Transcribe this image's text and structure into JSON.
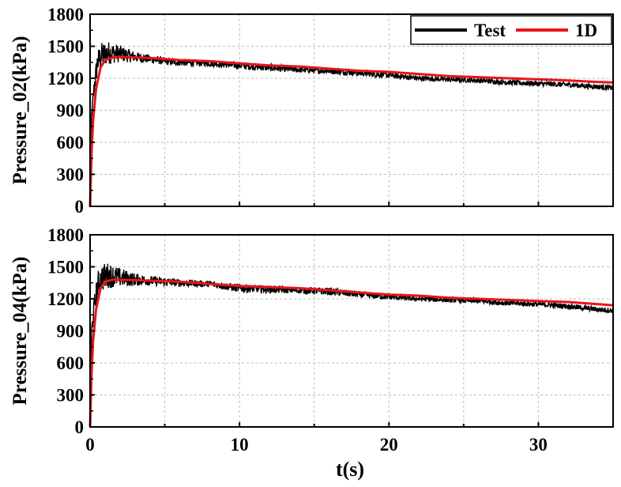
{
  "chart_data": {
    "type": "line",
    "shared_x": {
      "label": "t(s)",
      "xlim": [
        0,
        35
      ],
      "ticks": [
        0,
        10,
        20,
        30
      ],
      "minor_ticks": [
        5,
        15,
        25,
        35
      ]
    },
    "legend": {
      "position": "top-right",
      "entries": [
        {
          "name": "Test",
          "color": "#000000"
        },
        {
          "name": "1D",
          "color": "#e8141b"
        }
      ]
    },
    "panels": [
      {
        "ylabel": "Pressure_02(kPa)",
        "ylim": [
          0,
          1800
        ],
        "yticks": [
          0,
          300,
          600,
          900,
          1200,
          1500,
          1800
        ],
        "series": [
          {
            "name": "Test",
            "color": "#000000",
            "points": [
              [
                0,
                0
              ],
              [
                0.1,
                850
              ],
              [
                0.3,
                1150
              ],
              [
                0.5,
                1350
              ],
              [
                0.8,
                1420
              ],
              [
                1.2,
                1440
              ],
              [
                2,
                1430
              ],
              [
                3,
                1400
              ],
              [
                4,
                1380
              ],
              [
                5,
                1360
              ],
              [
                6,
                1350
              ],
              [
                8,
                1340
              ],
              [
                10,
                1320
              ],
              [
                12,
                1300
              ],
              [
                14,
                1280
              ],
              [
                16,
                1270
              ],
              [
                18,
                1250
              ],
              [
                20,
                1230
              ],
              [
                22,
                1200
              ],
              [
                24,
                1190
              ],
              [
                26,
                1180
              ],
              [
                28,
                1160
              ],
              [
                30,
                1150
              ],
              [
                32,
                1140
              ],
              [
                34,
                1120
              ],
              [
                35,
                1110
              ]
            ],
            "noise": [
              0,
              60,
              90,
              120,
              120,
              110,
              80,
              50,
              40,
              35,
              35,
              30,
              35,
              35,
              30,
              30,
              30,
              30,
              25,
              25,
              25,
              25,
              25,
              25,
              25,
              25
            ]
          },
          {
            "name": "1D",
            "color": "#e8141b",
            "points": [
              [
                0,
                0
              ],
              [
                0.1,
                500
              ],
              [
                0.2,
                800
              ],
              [
                0.4,
                1100
              ],
              [
                0.7,
                1300
              ],
              [
                1.0,
                1370
              ],
              [
                1.5,
                1395
              ],
              [
                2,
                1400
              ],
              [
                4,
                1390
              ],
              [
                6,
                1370
              ],
              [
                8,
                1360
              ],
              [
                10,
                1340
              ],
              [
                12,
                1320
              ],
              [
                14,
                1310
              ],
              [
                16,
                1290
              ],
              [
                18,
                1270
              ],
              [
                20,
                1260
              ],
              [
                22,
                1240
              ],
              [
                24,
                1220
              ],
              [
                26,
                1210
              ],
              [
                28,
                1200
              ],
              [
                30,
                1190
              ],
              [
                32,
                1180
              ],
              [
                34,
                1165
              ],
              [
                35,
                1160
              ]
            ]
          }
        ]
      },
      {
        "ylabel": "Pressure_04(kPa)",
        "ylim": [
          0,
          1800
        ],
        "yticks": [
          0,
          300,
          600,
          900,
          1200,
          1500,
          1800
        ],
        "series": [
          {
            "name": "Test",
            "color": "#000000",
            "points": [
              [
                0,
                0
              ],
              [
                0.1,
                900
              ],
              [
                0.3,
                1150
              ],
              [
                0.5,
                1320
              ],
              [
                0.8,
                1400
              ],
              [
                1.2,
                1420
              ],
              [
                2,
                1400
              ],
              [
                3,
                1380
              ],
              [
                4,
                1370
              ],
              [
                5,
                1360
              ],
              [
                6,
                1350
              ],
              [
                8,
                1340
              ],
              [
                10,
                1300
              ],
              [
                12,
                1290
              ],
              [
                14,
                1280
              ],
              [
                16,
                1270
              ],
              [
                18,
                1240
              ],
              [
                20,
                1220
              ],
              [
                22,
                1200
              ],
              [
                24,
                1190
              ],
              [
                26,
                1180
              ],
              [
                28,
                1160
              ],
              [
                30,
                1150
              ],
              [
                32,
                1130
              ],
              [
                34,
                1100
              ],
              [
                35,
                1090
              ]
            ],
            "noise": [
              0,
              60,
              100,
              130,
              130,
              120,
              90,
              60,
              45,
              40,
              35,
              30,
              40,
              35,
              30,
              35,
              30,
              30,
              25,
              25,
              25,
              25,
              25,
              25,
              25,
              25
            ]
          },
          {
            "name": "1D",
            "color": "#e8141b",
            "points": [
              [
                0,
                0
              ],
              [
                0.1,
                500
              ],
              [
                0.2,
                800
              ],
              [
                0.4,
                1100
              ],
              [
                0.7,
                1300
              ],
              [
                1.0,
                1360
              ],
              [
                1.5,
                1380
              ],
              [
                2,
                1380
              ],
              [
                4,
                1370
              ],
              [
                6,
                1360
              ],
              [
                8,
                1340
              ],
              [
                10,
                1320
              ],
              [
                12,
                1310
              ],
              [
                14,
                1300
              ],
              [
                16,
                1280
              ],
              [
                18,
                1260
              ],
              [
                20,
                1240
              ],
              [
                22,
                1230
              ],
              [
                24,
                1210
              ],
              [
                26,
                1200
              ],
              [
                28,
                1190
              ],
              [
                30,
                1180
              ],
              [
                32,
                1170
              ],
              [
                34,
                1150
              ],
              [
                35,
                1140
              ]
            ]
          }
        ]
      }
    ]
  }
}
